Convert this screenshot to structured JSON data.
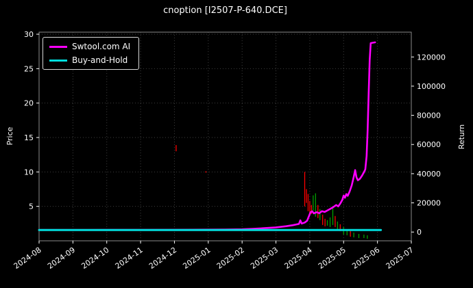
{
  "title": "cnoption [I2507-P-640.DCE]",
  "left_axis": {
    "label": "Price",
    "ticks": [
      5,
      10,
      15,
      20,
      25,
      30
    ],
    "lim": [
      0,
      30.3
    ]
  },
  "right_axis": {
    "label": "Return",
    "ticks": [
      0,
      20000,
      40000,
      60000,
      80000,
      100000,
      120000
    ],
    "lim": [
      -6000,
      137000
    ]
  },
  "x_axis": {
    "tick_labels": [
      "2024-08",
      "2024-09",
      "2024-10",
      "2024-11",
      "2024-12",
      "2025-01",
      "2025-02",
      "2025-03",
      "2025-04",
      "2025-05",
      "2025-06",
      "2025-07"
    ]
  },
  "legend": {
    "items": [
      {
        "label": "Swtool.com AI",
        "color": "#ff00ff"
      },
      {
        "label": "Buy-and-Hold",
        "color": "#00dddd"
      }
    ]
  },
  "colors": {
    "background": "#000000",
    "text": "#ffffff",
    "grid": "#3f3f3f",
    "spine": "#8a8a8a",
    "ai_line": "#ff00ff",
    "bh_line": "#00dddd",
    "bar_up": "#00a000",
    "bar_down": "#ff0000"
  },
  "chart_data": {
    "type": "line",
    "title": "cnoption [I2507-P-640.DCE]",
    "xlabel": "",
    "ylabel_left": "Price",
    "ylabel_right": "Return",
    "x_unit": "months since 2024-08 (0 = 2024-08, 11 = 2025-07)",
    "xlim": [
      0,
      11
    ],
    "left_ylim": [
      0,
      30.3
    ],
    "right_ylim": [
      -6000,
      137000
    ],
    "grid": true,
    "legend_position": "upper left",
    "series": [
      {
        "name": "Swtool.com AI",
        "axis": "right",
        "color": "#ff00ff",
        "points": [
          [
            0,
            1400
          ],
          [
            1,
            1400
          ],
          [
            2,
            1450
          ],
          [
            3,
            1500
          ],
          [
            4,
            1550
          ],
          [
            5,
            1650
          ],
          [
            5.5,
            1750
          ],
          [
            6,
            1900
          ],
          [
            6.3,
            2200
          ],
          [
            6.6,
            2600
          ],
          [
            7,
            3200
          ],
          [
            7.3,
            4000
          ],
          [
            7.5,
            4700
          ],
          [
            7.6,
            5200
          ],
          [
            7.68,
            5600
          ],
          [
            7.72,
            8000
          ],
          [
            7.76,
            5800
          ],
          [
            7.85,
            6500
          ],
          [
            7.92,
            7800
          ],
          [
            7.97,
            10500
          ],
          [
            8.02,
            13500
          ],
          [
            8.07,
            14200
          ],
          [
            8.12,
            12800
          ],
          [
            8.2,
            13600
          ],
          [
            8.28,
            12900
          ],
          [
            8.36,
            14300
          ],
          [
            8.44,
            13800
          ],
          [
            8.52,
            14800
          ],
          [
            8.6,
            15800
          ],
          [
            8.7,
            17200
          ],
          [
            8.78,
            18500
          ],
          [
            8.84,
            17600
          ],
          [
            8.9,
            19500
          ],
          [
            8.96,
            22000
          ],
          [
            9.0,
            25000
          ],
          [
            9.04,
            23500
          ],
          [
            9.08,
            26000
          ],
          [
            9.12,
            24800
          ],
          [
            9.18,
            28000
          ],
          [
            9.24,
            32000
          ],
          [
            9.3,
            38000
          ],
          [
            9.34,
            42500
          ],
          [
            9.38,
            37500
          ],
          [
            9.42,
            35500
          ],
          [
            9.48,
            36500
          ],
          [
            9.54,
            38500
          ],
          [
            9.6,
            41000
          ],
          [
            9.64,
            43000
          ],
          [
            9.68,
            52000
          ],
          [
            9.71,
            70000
          ],
          [
            9.74,
            95000
          ],
          [
            9.77,
            118000
          ],
          [
            9.8,
            129500
          ],
          [
            9.93,
            130000
          ]
        ]
      },
      {
        "name": "Buy-and-Hold",
        "axis": "right",
        "color": "#00dddd",
        "points": [
          [
            0,
            1400
          ],
          [
            10.1,
            1400
          ]
        ]
      }
    ],
    "price_bars": {
      "axis": "left",
      "up_color": "#00a000",
      "down_color": "#ff0000",
      "bars": [
        [
          4.05,
          13.9,
          13.0,
          "r"
        ],
        [
          4.93,
          10.1,
          9.9,
          "r"
        ],
        [
          7.85,
          10.0,
          5.0,
          "r"
        ],
        [
          7.9,
          7.5,
          5.5,
          "r"
        ],
        [
          7.95,
          6.8,
          4.3,
          "r"
        ],
        [
          8.0,
          5.8,
          4.0,
          "r"
        ],
        [
          8.05,
          5.2,
          3.9,
          "r"
        ],
        [
          8.1,
          6.6,
          4.4,
          "g"
        ],
        [
          8.17,
          6.9,
          3.5,
          "g"
        ],
        [
          8.24,
          5.2,
          3.3,
          "r"
        ],
        [
          8.3,
          4.6,
          3.0,
          "g"
        ],
        [
          8.38,
          3.8,
          2.3,
          "r"
        ],
        [
          8.45,
          3.2,
          2.1,
          "r"
        ],
        [
          8.52,
          3.0,
          2.2,
          "g"
        ],
        [
          8.6,
          3.4,
          2.0,
          "g"
        ],
        [
          8.68,
          4.9,
          2.3,
          "g"
        ],
        [
          8.75,
          3.6,
          2.0,
          "r"
        ],
        [
          8.82,
          2.8,
          1.6,
          "g"
        ],
        [
          8.9,
          2.4,
          1.4,
          "r"
        ],
        [
          9.0,
          2.0,
          0.9,
          "g"
        ],
        [
          9.1,
          1.6,
          0.8,
          "g"
        ],
        [
          9.2,
          1.4,
          0.6,
          "r"
        ],
        [
          9.3,
          1.2,
          0.5,
          "g"
        ],
        [
          9.45,
          1.0,
          0.4,
          "g"
        ],
        [
          9.6,
          0.9,
          0.4,
          "g"
        ],
        [
          9.7,
          0.8,
          0.3,
          "g"
        ]
      ]
    }
  }
}
